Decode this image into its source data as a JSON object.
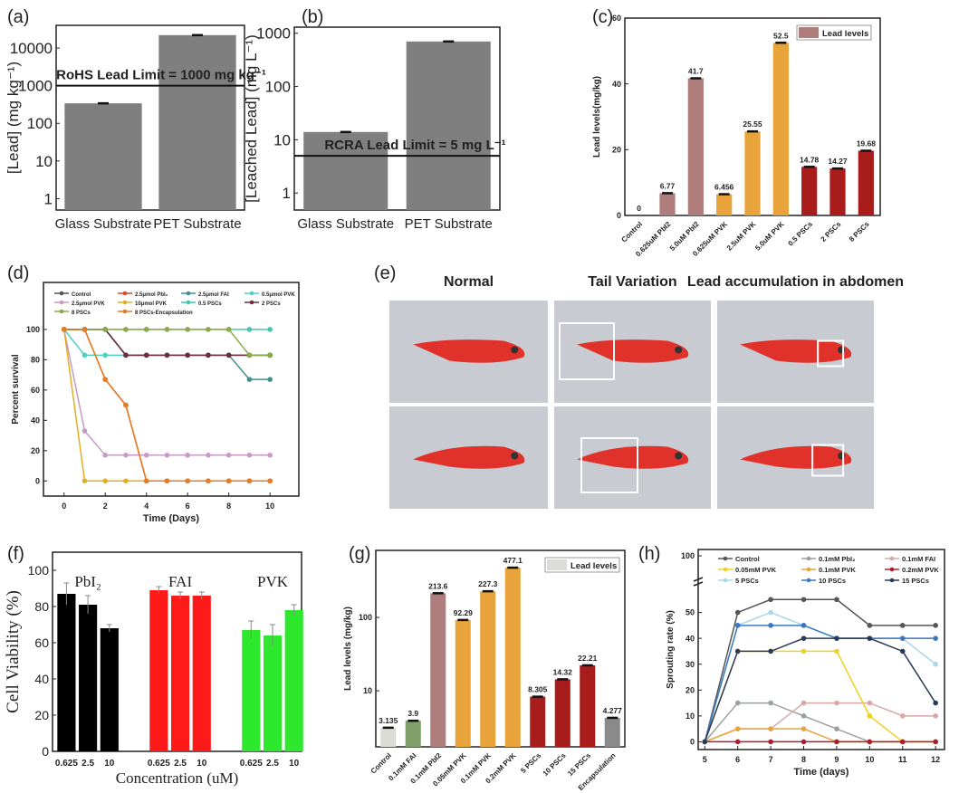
{
  "panel_labels": [
    "(a)",
    "(b)",
    "(c)",
    "(d)",
    "(e)",
    "(f)",
    "(g)",
    "(h)"
  ],
  "chart_data": [
    {
      "id": "a",
      "type": "bar",
      "categories": [
        "Glass Substrate",
        "PET Substrate"
      ],
      "values": [
        340,
        22000
      ],
      "ylabel": "[Lead] (mg kg⁻¹)",
      "yscale": "log",
      "ylim": [
        0.5,
        40000
      ],
      "yticks": [
        "1",
        "10",
        "100",
        "1000",
        "10000"
      ],
      "colors": [
        "#7f7f7f",
        "#7f7f7f"
      ],
      "annotation": "RoHS Lead Limit = 1000 mg kg⁻¹",
      "limit_value": 1000
    },
    {
      "id": "b",
      "type": "bar",
      "categories": [
        "Glass Substrate",
        "PET Substrate"
      ],
      "values": [
        14,
        700
      ],
      "ylabel": "[Leached Lead] (mg L⁻¹)",
      "yscale": "log",
      "ylim": [
        0.48,
        1300
      ],
      "yticks": [
        "1",
        "10",
        "100",
        "1000"
      ],
      "colors": [
        "#7f7f7f",
        "#7f7f7f"
      ],
      "annotation": "RCRA Lead Limit = 5 mg L⁻¹",
      "limit_value": 5
    },
    {
      "id": "c",
      "type": "bar",
      "categories": [
        "Control",
        "0.625uM PbI2",
        "5.0uM PbI2",
        "0.625uM PVK",
        "2.5uM PVK",
        "5.0uM PVK",
        "0.5 PSCs",
        "2 PSCs",
        "8 PSCs"
      ],
      "values": [
        0,
        6.77,
        41.7,
        6.456,
        25.55,
        52.5,
        14.78,
        14.27,
        19.68
      ],
      "data_labels": [
        "0",
        "6.77",
        "41.7",
        "6.456",
        "25.55",
        "52.5",
        "14.78",
        "14.27",
        "19.68"
      ],
      "ylabel": "Lead levels(mg/kg)",
      "yscale": "linear",
      "ylim": [
        0,
        60
      ],
      "yticks": [
        "0",
        "20",
        "40",
        "60"
      ],
      "legend": "Lead levels",
      "legend_color": "#b07d7d",
      "legend_position": "top-right",
      "colors": [
        "#b07d7d",
        "#b07d7d",
        "#b07d7d",
        "#e8a33a",
        "#e8a33a",
        "#e8a33a",
        "#a81c1c",
        "#a81c1c",
        "#a81c1c"
      ]
    },
    {
      "id": "d",
      "type": "line",
      "x": [
        0,
        1,
        2,
        3,
        4,
        5,
        6,
        7,
        8,
        9,
        10
      ],
      "xlabel": "Time (Days)",
      "ylabel": "Percent survival",
      "xlim": [
        -1,
        11.4
      ],
      "ylim": [
        -10,
        131
      ],
      "xticks": [
        "0",
        "2",
        "4",
        "6",
        "8",
        "10"
      ],
      "yticks": [
        "0",
        "20",
        "40",
        "60",
        "80",
        "100"
      ],
      "legend_position": "top",
      "series": [
        {
          "name": "Control",
          "color": "#555555",
          "values": [
            100,
            100,
            100,
            83,
            83,
            83,
            83,
            83,
            83,
            83,
            83
          ]
        },
        {
          "name": "2.5μmol PbI₂",
          "color": "#e0452a",
          "values": [
            100,
            100,
            67,
            50,
            0,
            0,
            0,
            0,
            0,
            0,
            0
          ]
        },
        {
          "name": "2.5μmol FAI",
          "color": "#3f8f8f",
          "values": [
            100,
            100,
            100,
            83,
            83,
            83,
            83,
            83,
            83,
            67,
            67
          ]
        },
        {
          "name": "0.5μmol PVK",
          "color": "#4fd0c0",
          "values": [
            100,
            83,
            83,
            83,
            83,
            83,
            83,
            83,
            83,
            83,
            83
          ]
        },
        {
          "name": "2.5μmol PVK",
          "color": "#c89ac8",
          "values": [
            100,
            33,
            17,
            17,
            17,
            17,
            17,
            17,
            17,
            17,
            17
          ]
        },
        {
          "name": "10μmol PVK",
          "color": "#e0b020",
          "values": [
            100,
            0,
            0,
            0,
            0,
            0,
            0,
            0,
            0,
            0,
            0
          ]
        },
        {
          "name": "0.5 PSCs",
          "color": "#40c8b0",
          "values": [
            100,
            100,
            100,
            100,
            100,
            100,
            100,
            100,
            100,
            100,
            100
          ]
        },
        {
          "name": "2 PSCs",
          "color": "#6a2e3e",
          "values": [
            100,
            100,
            100,
            83,
            83,
            83,
            83,
            83,
            83,
            83,
            83
          ]
        },
        {
          "name": "8 PSCs",
          "color": "#8aaa4a",
          "values": [
            100,
            100,
            100,
            100,
            100,
            100,
            100,
            100,
            100,
            83,
            83
          ]
        },
        {
          "name": "8 PSCs-Encapsulation",
          "color": "#e87a20",
          "values": [
            100,
            100,
            67,
            50,
            0,
            0,
            0,
            0,
            0,
            0,
            0
          ]
        }
      ]
    },
    {
      "id": "f",
      "type": "bar",
      "groups": [
        "PbI₂",
        "FAI",
        "PVK"
      ],
      "categories": [
        "0.625",
        "2.5",
        "10",
        "0.625",
        "2.5",
        "10",
        "0.625",
        "2.5",
        "10"
      ],
      "values": [
        87,
        81,
        68,
        89,
        86,
        86,
        67,
        64,
        78
      ],
      "errors": [
        6,
        5,
        2,
        2,
        2,
        2,
        5,
        6,
        3
      ],
      "xlabel": "Concentration (uM)",
      "ylabel": "Cell Viability (%)",
      "yscale": "linear",
      "ylim": [
        0,
        110
      ],
      "yticks": [
        "0",
        "20",
        "40",
        "60",
        "80",
        "100"
      ],
      "colors": [
        "#000000",
        "#000000",
        "#000000",
        "#ff1a1a",
        "#ff1a1a",
        "#ff1a1a",
        "#2ee82e",
        "#2ee82e",
        "#2ee82e"
      ]
    },
    {
      "id": "g",
      "type": "bar",
      "categories": [
        "Control",
        "0.1mM FAI",
        "0.1mM PbI2",
        "0.05mM PVK",
        "0.1mM PVK",
        "0.2mM PVK",
        "5 PSCs",
        "10 PSCs",
        "15 PSCs",
        "Encapsulation"
      ],
      "values": [
        3.135,
        3.9,
        213.6,
        92.29,
        227.3,
        477.1,
        8.305,
        14.32,
        22.21,
        4.277
      ],
      "data_labels": [
        "3.135",
        "3.9",
        "213.6",
        "92.29",
        "227.3",
        "477.1",
        "8.305",
        "14.32",
        "22.21",
        "4.277"
      ],
      "ylabel": "Lead levels (mg/kg)",
      "yscale": "log",
      "ylim": [
        1.72,
        820
      ],
      "yticks": [
        "10",
        "100"
      ],
      "legend": "Lead levels",
      "legend_color": "#dcdcd6",
      "legend_position": "top-right",
      "colors": [
        "#dcdcd6",
        "#7fa06a",
        "#b07d7d",
        "#e8a33a",
        "#e8a33a",
        "#e8a33a",
        "#a81c1c",
        "#a81c1c",
        "#a81c1c",
        "#8a8a8a"
      ]
    },
    {
      "id": "h",
      "type": "line",
      "x": [
        5,
        6,
        7,
        8,
        9,
        10,
        11,
        12
      ],
      "xlabel": "Time (days)",
      "ylabel": "Sprouting rate (%)",
      "xlim": [
        4.8,
        12.27
      ],
      "ylim": [
        -3,
        60
      ],
      "axis_break": true,
      "xticks": [
        "5",
        "6",
        "7",
        "8",
        "9",
        "10",
        "11",
        "12"
      ],
      "yticks": [
        "0",
        "10",
        "20",
        "30",
        "40",
        "50",
        "100"
      ],
      "legend_position": "top",
      "series": [
        {
          "name": "Control",
          "color": "#555555",
          "values": [
            0,
            50,
            55,
            55,
            55,
            45,
            45,
            45
          ]
        },
        {
          "name": "0.1mM PbI₂",
          "color": "#9aa09a",
          "values": [
            0,
            15,
            15,
            10,
            5,
            0,
            0,
            0
          ]
        },
        {
          "name": "0.1mM FAI",
          "color": "#d8a8a8",
          "values": [
            0,
            5,
            5,
            15,
            15,
            15,
            10,
            10
          ]
        },
        {
          "name": "0.05mM PVK",
          "color": "#f0d020",
          "values": [
            0,
            35,
            35,
            35,
            35,
            10,
            0,
            0
          ]
        },
        {
          "name": "0.1mM PVK",
          "color": "#e8a33a",
          "values": [
            0,
            5,
            5,
            5,
            0,
            0,
            0,
            0
          ]
        },
        {
          "name": "0.2mM PVK",
          "color": "#b01c2c",
          "values": [
            0,
            0,
            0,
            0,
            0,
            0,
            0,
            0
          ]
        },
        {
          "name": "5 PSCs",
          "color": "#a8d8e8",
          "values": [
            0,
            45,
            50,
            45,
            40,
            40,
            40,
            30
          ]
        },
        {
          "name": "10 PSCs",
          "color": "#3a78c0",
          "values": [
            0,
            45,
            45,
            45,
            40,
            40,
            40,
            40
          ]
        },
        {
          "name": "15 PSCs",
          "color": "#2a3a5a",
          "values": [
            0,
            35,
            35,
            40,
            40,
            40,
            35,
            15
          ]
        }
      ]
    }
  ],
  "photos": {
    "column_titles": [
      "Normal",
      "Tail Variation",
      "Lead accumulation in abdomen"
    ],
    "background": "#c8cbd2",
    "fish_color": "#e0322a"
  }
}
